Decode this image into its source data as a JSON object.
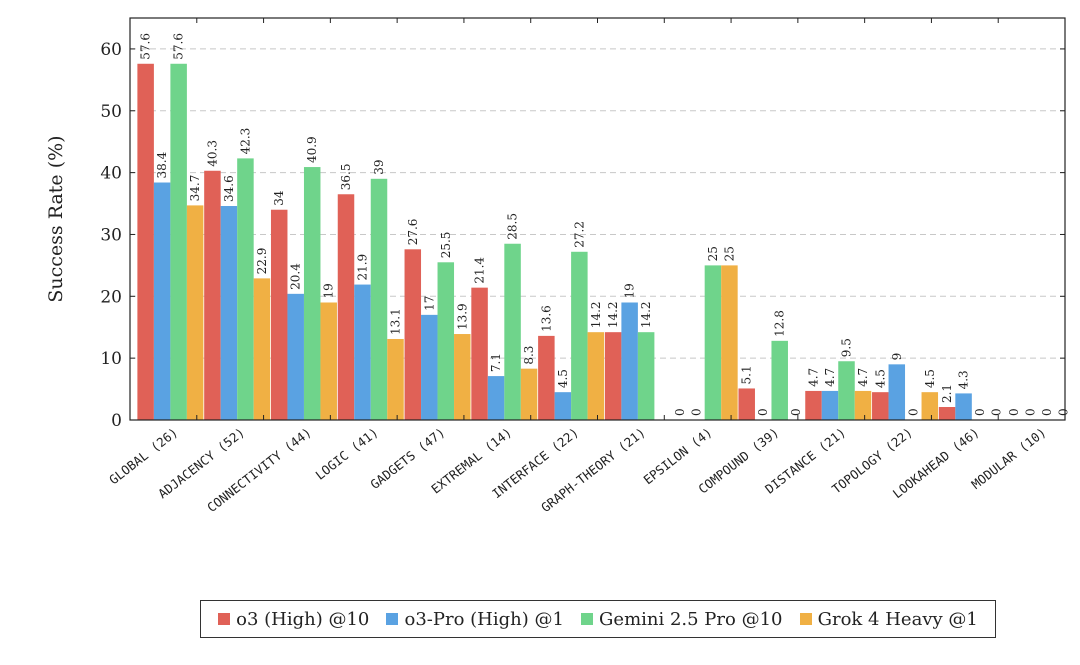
{
  "chart_data": {
    "type": "bar",
    "title": "",
    "xlabel": "",
    "ylabel": "Success Rate (%)",
    "ylim": [
      0,
      65
    ],
    "yticks": [
      0,
      10,
      20,
      30,
      40,
      50,
      60
    ],
    "grid": "horizontal-dashed",
    "legend_position": "bottom",
    "categories": [
      "GLOBAL (26)",
      "ADJACENCY (52)",
      "CONNECTIVITY (44)",
      "LOGIC (41)",
      "GADGETS (47)",
      "EXTREMAL (14)",
      "INTERFACE (22)",
      "GRAPH-THEORY (21)",
      "EPSILON (4)",
      "COMPOUND (39)",
      "DISTANCE (21)",
      "TOPOLOGY (22)",
      "LOOKAHEAD (46)",
      "MODULAR (10)"
    ],
    "series": [
      {
        "name": "o3 (High) @10",
        "color": "#e06157",
        "values": [
          57.6,
          40.3,
          34,
          36.5,
          27.6,
          21.4,
          13.6,
          14.2,
          0,
          5.1,
          4.7,
          4.5,
          2.1,
          0
        ]
      },
      {
        "name": "o3-Pro (High) @1",
        "color": "#5aa2e2",
        "values": [
          38.4,
          34.6,
          20.4,
          21.9,
          17,
          7.1,
          4.5,
          19,
          0,
          0,
          4.7,
          9,
          4.3,
          0
        ]
      },
      {
        "name": "Gemini 2.5 Pro @10",
        "color": "#6fd48b",
        "values": [
          57.6,
          42.3,
          40.9,
          39,
          25.5,
          28.5,
          27.2,
          14.2,
          25,
          12.8,
          9.5,
          0,
          0,
          0
        ]
      },
      {
        "name": "Grok 4 Heavy @1",
        "color": "#f0b044",
        "values": [
          34.7,
          22.9,
          19,
          13.1,
          13.9,
          8.3,
          14.2,
          null,
          25,
          0,
          4.7,
          4.5,
          0,
          0
        ]
      }
    ]
  }
}
